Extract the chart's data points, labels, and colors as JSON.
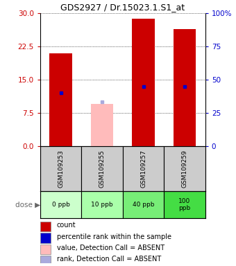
{
  "title": "GDS2927 / Dr.15023.1.S1_at",
  "samples": [
    "GSM109253",
    "GSM109255",
    "GSM109257",
    "GSM109259"
  ],
  "doses": [
    "0 ppb",
    "10 ppb",
    "40 ppb",
    "100\nppb"
  ],
  "dose_colors": [
    "#ccffcc",
    "#aaffaa",
    "#77ee77",
    "#44dd44"
  ],
  "red_bar_heights": [
    21.0,
    null,
    28.8,
    26.5
  ],
  "pink_bar_heights": [
    null,
    9.5,
    null,
    null
  ],
  "blue_marker_values": [
    12.0,
    null,
    13.5,
    13.5
  ],
  "lavender_marker_values": [
    null,
    10.0,
    null,
    null
  ],
  "ylim_left": [
    0,
    30
  ],
  "ylim_right": [
    0,
    100
  ],
  "yticks_left": [
    0,
    7.5,
    15,
    22.5,
    30
  ],
  "yticks_right": [
    0,
    25,
    50,
    75,
    100
  ],
  "bar_width": 0.55,
  "red_color": "#cc0000",
  "pink_color": "#ffbbbb",
  "blue_color": "#0000cc",
  "lavender_color": "#aaaadd",
  "left_tick_color": "#cc0000",
  "right_tick_color": "#0000cc",
  "sample_box_color": "#cccccc",
  "legend_items": [
    {
      "color": "#cc0000",
      "label": "count"
    },
    {
      "color": "#0000cc",
      "label": "percentile rank within the sample"
    },
    {
      "color": "#ffbbbb",
      "label": "value, Detection Call = ABSENT"
    },
    {
      "color": "#aaaadd",
      "label": "rank, Detection Call = ABSENT"
    }
  ],
  "dose_label": "dose"
}
